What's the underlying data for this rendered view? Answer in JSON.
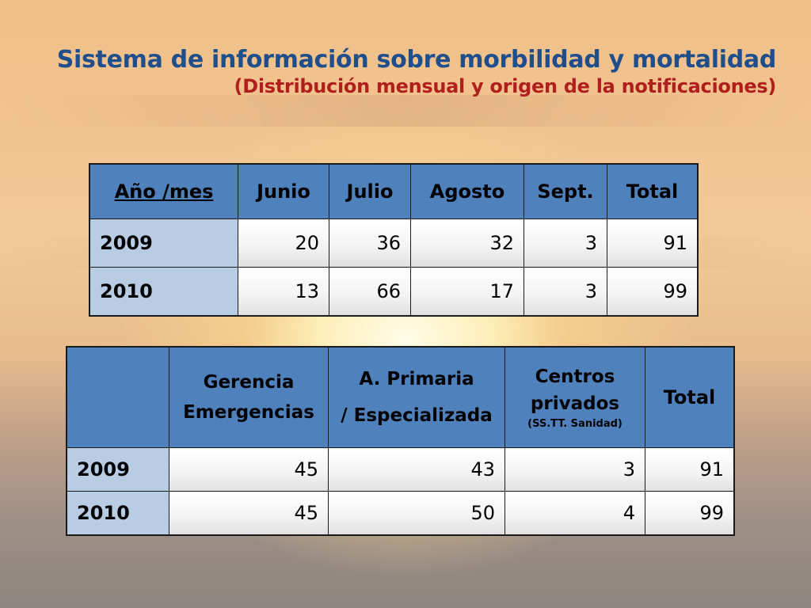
{
  "slide": {
    "title": "Sistema de información sobre morbilidad y mortalidad",
    "subtitle": "(Distribución mensual y origen de la notificaciones)"
  },
  "table_months": {
    "headers": [
      "Año /mes",
      "Junio",
      "Julio",
      "Agosto",
      "Sept.",
      "Total"
    ],
    "rows": [
      {
        "label": "2009",
        "values": [
          "20",
          "36",
          "32",
          "3",
          "91"
        ]
      },
      {
        "label": "2010",
        "values": [
          "13",
          "66",
          "17",
          "3",
          "99"
        ]
      }
    ]
  },
  "table_origin": {
    "headers": {
      "gerencia": [
        "Gerencia",
        "Emergencias"
      ],
      "primaria": [
        "A. Primaria",
        "/ Especializada"
      ],
      "privados": [
        "Centros",
        "privados"
      ],
      "privados_note": "(SS.TT. Sanidad)",
      "total": "Total"
    },
    "rows": [
      {
        "label": "2009",
        "values": [
          "45",
          "43",
          "3",
          "91"
        ]
      },
      {
        "label": "2010",
        "values": [
          "45",
          "50",
          "4",
          "99"
        ]
      }
    ]
  }
}
